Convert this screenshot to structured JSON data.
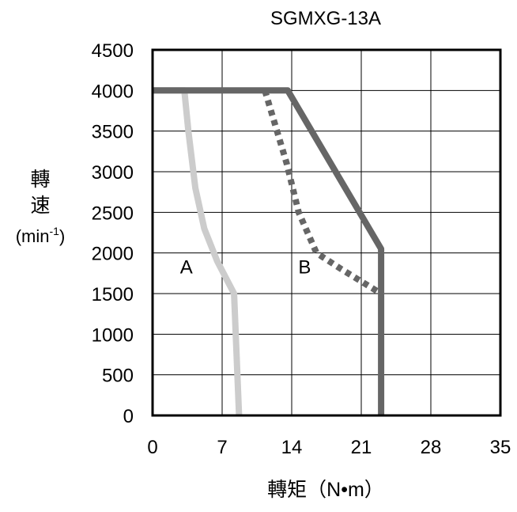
{
  "chart_data": {
    "type": "line",
    "title": "SGMXG-13A",
    "xlabel": "轉矩（N•m）",
    "ylabel": {
      "line1": "轉",
      "line2": "速",
      "unit_base": "(min",
      "unit_sup": "-1",
      "unit_close": ")"
    },
    "xlim": [
      0,
      35
    ],
    "ylim": [
      0,
      4500
    ],
    "x_ticks": [
      "0",
      "7",
      "14",
      "21",
      "28",
      "35"
    ],
    "y_ticks": [
      "0",
      "500",
      "1000",
      "1500",
      "2000",
      "2500",
      "3000",
      "3500",
      "4000",
      "4500"
    ],
    "grid": true,
    "series": [
      {
        "name": "A",
        "style": "solid",
        "color": "#cccccc",
        "points": [
          [
            0,
            4000
          ],
          [
            3.2,
            4000
          ],
          [
            3.6,
            3500
          ],
          [
            4.3,
            2800
          ],
          [
            5.2,
            2300
          ],
          [
            6.5,
            1900
          ],
          [
            8.2,
            1500
          ],
          [
            8.7,
            0
          ]
        ]
      },
      {
        "style": "solid",
        "color": "#666666",
        "points": [
          [
            0,
            4000
          ],
          [
            13.6,
            4000
          ],
          [
            23.0,
            2050
          ],
          [
            23.0,
            0
          ]
        ]
      },
      {
        "name": "B",
        "style": "dotted",
        "color": "#666666",
        "points": [
          [
            11.3,
            4000
          ],
          [
            13.5,
            3100
          ],
          [
            14.7,
            2500
          ],
          [
            16.5,
            2000
          ],
          [
            19.0,
            1800
          ],
          [
            23.0,
            1500
          ]
        ]
      }
    ],
    "annotations": [
      {
        "text": "A",
        "x": 3.4,
        "y": 1750
      },
      {
        "text": "B",
        "x": 15.3,
        "y": 1750
      }
    ]
  }
}
